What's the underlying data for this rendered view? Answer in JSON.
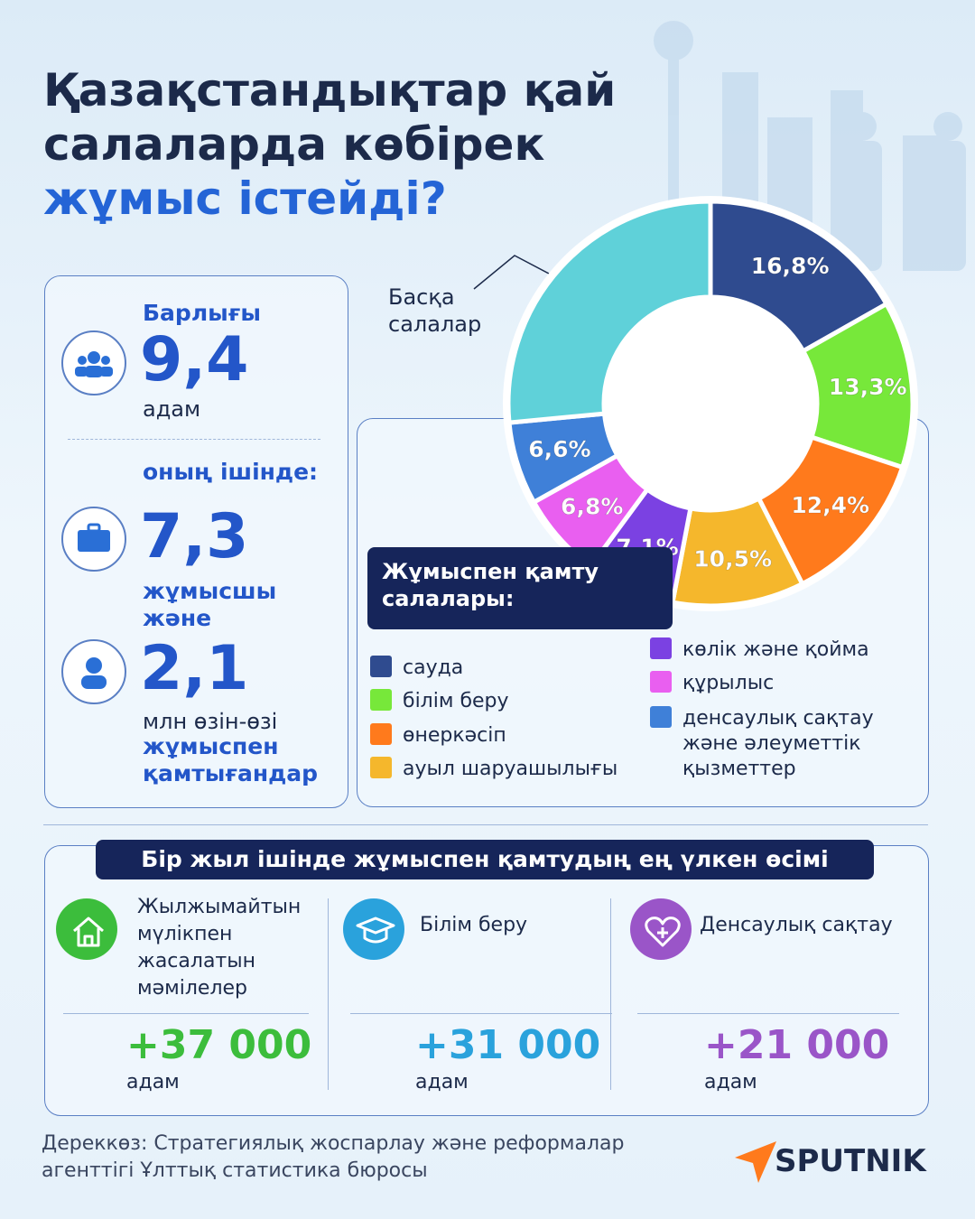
{
  "header": {
    "title_lines": [
      "Қазақстандықтар қай",
      "салаларда көбірек",
      "жұмыс істейді?"
    ]
  },
  "stats": {
    "total_label": "Барлығы",
    "total_value": "9,4",
    "total_unit": "адам",
    "within": "оның ішінде:",
    "workers_value": "7,3",
    "workers_unit": "жұмысшы",
    "and": "және",
    "self_value": "2,1",
    "self_unit": "млн өзін-өзі",
    "self_text_lines": [
      "жұмыспен",
      "қамтығандар"
    ]
  },
  "chart_data": {
    "type": "donut",
    "legend_title": "Жұмыспен қамту салалары:",
    "categories": [
      "сауда",
      "білім беру",
      "өнеркәсіп",
      "ауыл шаруашылығы",
      "көлік және қойма",
      "құрылыс",
      "денсаулық сақтау және әлеуметтік қызметтер",
      "Басқа салалар"
    ],
    "values": [
      16.8,
      13.3,
      12.4,
      10.5,
      7.1,
      6.8,
      6.6,
      26.5
    ],
    "value_labels": [
      "16,8%",
      "13,3%",
      "12,4%",
      "10,5%",
      "7,1%",
      "6,8%",
      "6,6%",
      null
    ],
    "colors": [
      "#2f4b8f",
      "#77e83a",
      "#ff7a1c",
      "#f5b72c",
      "#7b41e2",
      "#e95ff0",
      "#3f80d8",
      "#5fd1d9"
    ]
  },
  "growth": {
    "title": "Бір жыл ішінде жұмыспен қамтудың ең үлкен өсімі",
    "items": [
      {
        "label": "Жылжымайтын мүлікпен жасалатын мәмілелер",
        "value": "+37 000",
        "unit": "адам"
      },
      {
        "label": "Білім беру",
        "value": "+31 000",
        "unit": "адам"
      },
      {
        "label": "Денсаулық сақтау",
        "value": "+21 000",
        "unit": "адам"
      }
    ]
  },
  "footer": {
    "source": "Дереккөз: Стратегиялық жоспарлау және реформалар агенттігі Ұлттық статистика бюросы",
    "brand": "SPUTNIK"
  }
}
